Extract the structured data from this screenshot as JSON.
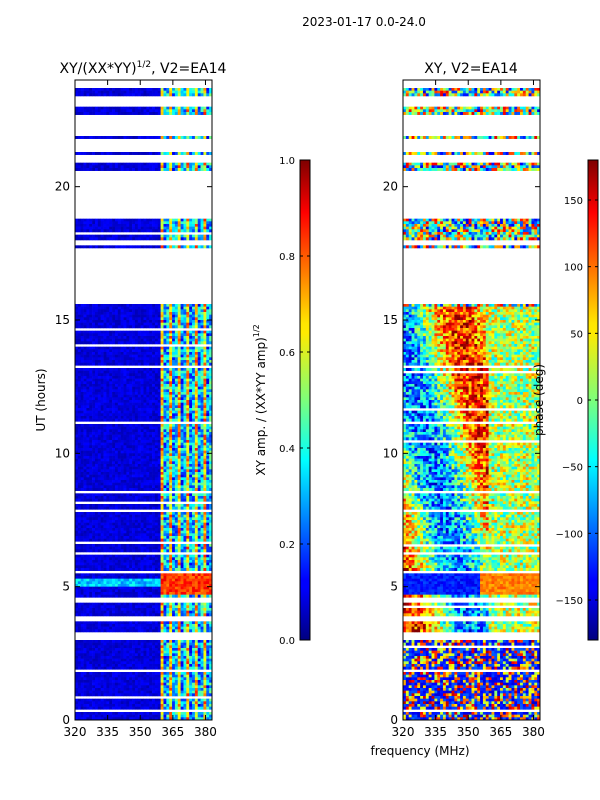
{
  "figure_title": "2023-01-17 0.0-24.0",
  "chart_data": [
    {
      "type": "heatmap",
      "title": "XY/(XX*YY)",
      "title_superscript": "1/2",
      "title_suffix": ", V2=EA14",
      "xlabel": "",
      "ylabel": "UT (hours)",
      "xlim": [
        320,
        383
      ],
      "ylim": [
        0,
        24
      ],
      "xticks": [
        320,
        335,
        350,
        365,
        380
      ],
      "yticks": [
        0,
        5,
        10,
        15,
        20
      ],
      "colormap": "jet",
      "colorbar": {
        "label": "XY amp. / (XX*YY amp)",
        "label_superscript": "1/2",
        "range": [
          0.0,
          1.0
        ],
        "ticks": [
          "0.0",
          "0.2",
          "0.4",
          "0.6",
          "0.8",
          "1.0"
        ],
        "tick_values": [
          0.0,
          0.2,
          0.4,
          0.6,
          0.8,
          1.0
        ]
      }
    },
    {
      "type": "heatmap",
      "title": "XY, V2=EA14",
      "xlabel": "frequency (MHz)",
      "ylabel": "",
      "xlim": [
        320,
        383
      ],
      "ylim": [
        0,
        24
      ],
      "xticks": [
        320,
        335,
        350,
        365,
        380
      ],
      "yticks": [
        0,
        5,
        10,
        15,
        20
      ],
      "colormap": "jet",
      "colorbar": {
        "label": "phase (deg)",
        "range": [
          -180,
          180
        ],
        "ticks": [
          "150",
          "100",
          "50",
          "0",
          "−50",
          "−100",
          "−150"
        ],
        "tick_values": [
          150,
          100,
          50,
          0,
          -50,
          -100,
          -150
        ]
      }
    }
  ]
}
